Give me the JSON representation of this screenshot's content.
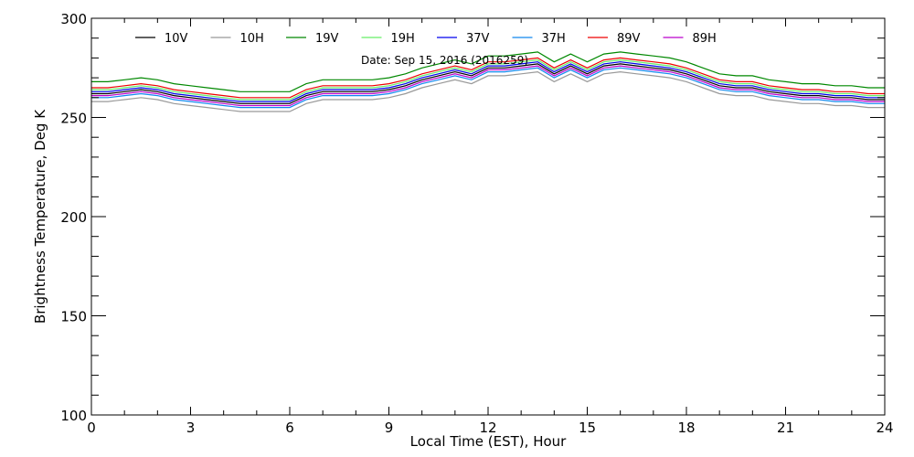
{
  "chart_data": {
    "type": "line",
    "annotation": "Date: Sep 15, 2016 (2016259)",
    "xlabel": "Local Time (EST), Hour",
    "ylabel": "Brightness Temperature, Deg K",
    "xlim": [
      0,
      24
    ],
    "ylim": [
      100,
      300
    ],
    "xticks": [
      "0",
      "3",
      "6",
      "9",
      "12",
      "15",
      "18",
      "21",
      "24"
    ],
    "yticks": [
      "100",
      "150",
      "200",
      "250",
      "300"
    ],
    "grid": false,
    "legend_position": "top",
    "x_step_hours": 0.5,
    "series": [
      {
        "name": "10V",
        "color": "#000000",
        "values": [
          262,
          262,
          263,
          264,
          263,
          261,
          260,
          259,
          258,
          257,
          257,
          257,
          257,
          261,
          263,
          263,
          263,
          263,
          264,
          266,
          269,
          271,
          273,
          271,
          275,
          275,
          276,
          277,
          272,
          276,
          272,
          276,
          277,
          276,
          275,
          274,
          272,
          269,
          266,
          265,
          265,
          263,
          262,
          261,
          261,
          260,
          260,
          259,
          259
        ]
      },
      {
        "name": "10H",
        "color": "#999999",
        "values": [
          258,
          258,
          259,
          260,
          259,
          257,
          256,
          255,
          254,
          253,
          253,
          253,
          253,
          257,
          259,
          259,
          259,
          259,
          260,
          262,
          265,
          267,
          269,
          267,
          271,
          271,
          272,
          273,
          268,
          272,
          268,
          272,
          273,
          272,
          271,
          270,
          268,
          265,
          262,
          261,
          261,
          259,
          258,
          257,
          257,
          256,
          256,
          255,
          255
        ]
      },
      {
        "name": "19V",
        "color": "#008800",
        "values": [
          268,
          268,
          269,
          270,
          269,
          267,
          266,
          265,
          264,
          263,
          263,
          263,
          263,
          267,
          269,
          269,
          269,
          269,
          270,
          272,
          275,
          277,
          279,
          277,
          281,
          281,
          282,
          283,
          278,
          282,
          278,
          282,
          283,
          282,
          281,
          280,
          278,
          275,
          272,
          271,
          271,
          269,
          268,
          267,
          267,
          266,
          266,
          265,
          265
        ]
      },
      {
        "name": "19H",
        "color": "#66ee66",
        "values": [
          264,
          264,
          265,
          266,
          265,
          263,
          262,
          261,
          260,
          259,
          259,
          259,
          259,
          263,
          265,
          265,
          265,
          265,
          266,
          268,
          271,
          273,
          275,
          273,
          277,
          277,
          278,
          279,
          274,
          278,
          274,
          278,
          279,
          278,
          277,
          276,
          274,
          271,
          268,
          267,
          267,
          265,
          264,
          263,
          263,
          262,
          262,
          261,
          261
        ]
      },
      {
        "name": "37V",
        "color": "#0000ee",
        "values": [
          263,
          263,
          264,
          265,
          264,
          262,
          261,
          260,
          259,
          258,
          258,
          258,
          258,
          262,
          264,
          264,
          264,
          264,
          265,
          267,
          270,
          272,
          274,
          272,
          276,
          276,
          277,
          278,
          273,
          277,
          273,
          277,
          278,
          277,
          276,
          275,
          273,
          270,
          267,
          266,
          266,
          264,
          263,
          262,
          262,
          261,
          261,
          260,
          260
        ]
      },
      {
        "name": "37H",
        "color": "#1188ee",
        "values": [
          260,
          260,
          261,
          262,
          261,
          259,
          258,
          257,
          256,
          255,
          255,
          255,
          255,
          259,
          261,
          261,
          261,
          261,
          262,
          264,
          267,
          269,
          271,
          269,
          273,
          273,
          274,
          275,
          270,
          274,
          270,
          274,
          275,
          274,
          273,
          272,
          270,
          267,
          264,
          263,
          263,
          261,
          260,
          259,
          259,
          258,
          258,
          257,
          257
        ]
      },
      {
        "name": "89V",
        "color": "#ee0000",
        "values": [
          265,
          265,
          266,
          267,
          266,
          264,
          263,
          262,
          261,
          260,
          260,
          260,
          260,
          264,
          266,
          266,
          266,
          266,
          267,
          269,
          272,
          274,
          276,
          274,
          278,
          278,
          279,
          280,
          275,
          279,
          275,
          279,
          280,
          279,
          278,
          277,
          275,
          272,
          269,
          268,
          268,
          266,
          265,
          264,
          264,
          263,
          263,
          262,
          262
        ]
      },
      {
        "name": "89H",
        "color": "#bb00cc",
        "values": [
          261,
          261,
          262,
          263,
          262,
          260,
          259,
          258,
          257,
          256,
          256,
          256,
          256,
          260,
          262,
          262,
          262,
          262,
          263,
          265,
          268,
          270,
          272,
          270,
          274,
          274,
          275,
          276,
          271,
          275,
          271,
          275,
          276,
          275,
          274,
          273,
          271,
          268,
          265,
          264,
          264,
          262,
          261,
          260,
          260,
          259,
          259,
          258,
          258
        ]
      }
    ]
  }
}
